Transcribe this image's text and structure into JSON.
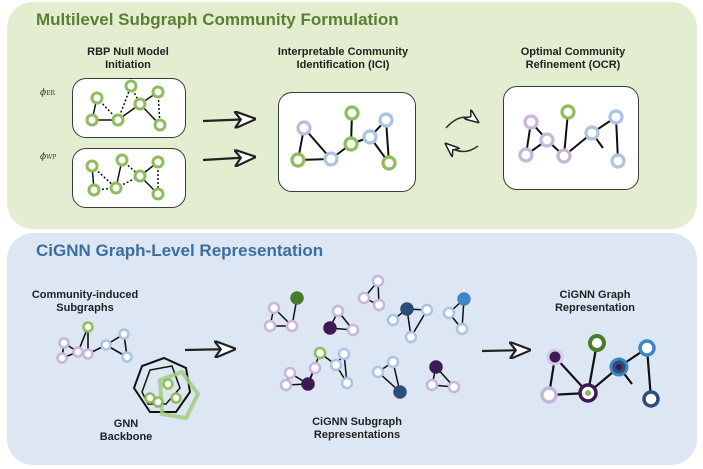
{
  "top_panel": {
    "title": "Multilevel Subgraph Community Formulation",
    "rbp_label_1": "RBP Null Model",
    "rbp_label_2": "Initiation",
    "ici_label_1": "Interpretable Community",
    "ici_label_2": "Identification (ICI)",
    "ocr_label_1": "Optimal Community",
    "ocr_label_2": "Refinement (OCR)",
    "phi_er": "ϕ",
    "phi_er_sub": "ER",
    "phi_wp": "ϕ",
    "phi_wp_sub": "WP"
  },
  "bottom_panel": {
    "title": "CiGNN Graph-Level Representation",
    "subgraphs_label_1": "Community-induced",
    "subgraphs_label_2": "Subgraphs",
    "backbone_label_1": "GNN",
    "backbone_label_2": "Backbone",
    "subgraph_repr_label_1": "CiGNN Subgraph",
    "subgraph_repr_label_2": "Representations",
    "graph_repr_label_1": "CiGNN Graph",
    "graph_repr_label_2": "Representation"
  },
  "colors": {
    "green_node": "#8dbd5c",
    "lavender_node": "#c7b6dc",
    "light_blue_node": "#a9c4e4",
    "dark_purple_node": "#3d1a52",
    "dark_green_node": "#4a7a2e",
    "navy_node": "#2b4d78",
    "blue_node": "#3f86c8"
  }
}
